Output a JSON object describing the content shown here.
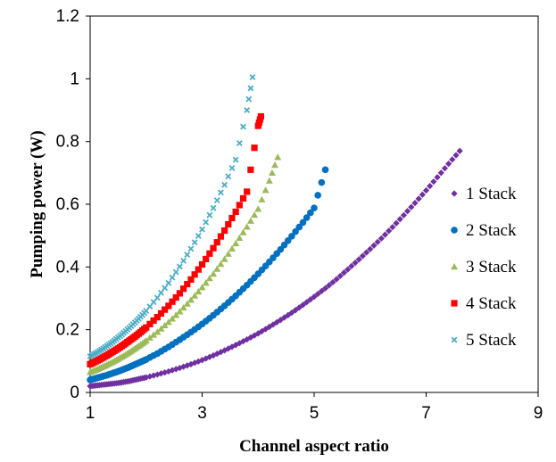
{
  "chart_data": {
    "type": "scatter",
    "title": "",
    "xlabel": "Channel aspect ratio",
    "ylabel": "Pumping power (W)",
    "xlim": [
      1,
      9
    ],
    "ylim": [
      0,
      1.2
    ],
    "x_ticks": [
      "1",
      "3",
      "5",
      "7",
      "9"
    ],
    "y_ticks": [
      "0",
      "0.2",
      "0.4",
      "0.6",
      "0.8",
      "1",
      "1.2"
    ],
    "grid": false,
    "legend_position": "right",
    "series": [
      {
        "name": "1 Stack",
        "color": "#7030A0",
        "marker": "diamond",
        "x": [
          1.0,
          1.1,
          1.2,
          1.3,
          1.4,
          1.5,
          1.6,
          1.7,
          1.8,
          1.9,
          2.0,
          2.2,
          2.4,
          2.6,
          2.8,
          3.0,
          3.2,
          3.4,
          3.6,
          3.8,
          4.0,
          4.2,
          4.4,
          4.6,
          4.8,
          5.0,
          5.2,
          5.4,
          5.6,
          5.8,
          6.0,
          6.2,
          6.4,
          6.6,
          6.8,
          7.0,
          7.2,
          7.4,
          7.6
        ],
        "y": [
          0.02,
          0.022,
          0.024,
          0.026,
          0.028,
          0.03,
          0.033,
          0.036,
          0.04,
          0.044,
          0.048,
          0.057,
          0.067,
          0.078,
          0.09,
          0.103,
          0.118,
          0.134,
          0.151,
          0.169,
          0.188,
          0.209,
          0.231,
          0.254,
          0.279,
          0.305,
          0.332,
          0.361,
          0.392,
          0.424,
          0.457,
          0.491,
          0.527,
          0.565,
          0.604,
          0.644,
          0.686,
          0.729,
          0.77
        ]
      },
      {
        "name": "2 Stack",
        "color": "#0070C0",
        "marker": "circle",
        "x": [
          1.0,
          1.1,
          1.2,
          1.3,
          1.4,
          1.5,
          1.6,
          1.7,
          1.8,
          1.9,
          2.0,
          2.2,
          2.4,
          2.6,
          2.8,
          3.0,
          3.2,
          3.4,
          3.6,
          3.8,
          4.0,
          4.2,
          4.4,
          4.6,
          4.8,
          5.0,
          5.2
        ],
        "y": [
          0.04,
          0.045,
          0.05,
          0.055,
          0.061,
          0.067,
          0.074,
          0.081,
          0.089,
          0.097,
          0.105,
          0.124,
          0.145,
          0.168,
          0.192,
          0.218,
          0.246,
          0.276,
          0.308,
          0.342,
          0.378,
          0.416,
          0.456,
          0.498,
          0.542,
          0.588,
          0.71
        ]
      },
      {
        "name": "3 Stack",
        "color": "#9BBB59",
        "marker": "triangle",
        "x": [
          1.0,
          1.1,
          1.2,
          1.3,
          1.4,
          1.5,
          1.6,
          1.7,
          1.8,
          1.9,
          2.0,
          2.2,
          2.4,
          2.6,
          2.8,
          3.0,
          3.2,
          3.4,
          3.6,
          3.8,
          4.0,
          4.2,
          4.35
        ],
        "y": [
          0.065,
          0.072,
          0.08,
          0.088,
          0.097,
          0.107,
          0.117,
          0.128,
          0.14,
          0.152,
          0.165,
          0.193,
          0.224,
          0.258,
          0.295,
          0.335,
          0.378,
          0.425,
          0.475,
          0.528,
          0.585,
          0.675,
          0.75
        ]
      },
      {
        "name": "4 Stack",
        "color": "#FF0000",
        "marker": "square",
        "x": [
          1.0,
          1.1,
          1.2,
          1.3,
          1.4,
          1.5,
          1.6,
          1.7,
          1.8,
          1.9,
          2.0,
          2.2,
          2.4,
          2.6,
          2.8,
          3.0,
          3.2,
          3.4,
          3.6,
          3.8,
          4.0,
          4.05
        ],
        "y": [
          0.09,
          0.099,
          0.108,
          0.118,
          0.129,
          0.14,
          0.152,
          0.165,
          0.178,
          0.192,
          0.207,
          0.24,
          0.276,
          0.316,
          0.36,
          0.408,
          0.46,
          0.516,
          0.576,
          0.64,
          0.85,
          0.88
        ]
      },
      {
        "name": "5 Stack",
        "color": "#4BACC6",
        "marker": "x",
        "x": [
          1.0,
          1.1,
          1.2,
          1.3,
          1.4,
          1.5,
          1.6,
          1.7,
          1.8,
          1.9,
          2.0,
          2.2,
          2.4,
          2.6,
          2.8,
          3.0,
          3.2,
          3.4,
          3.6,
          3.8,
          3.9
        ],
        "y": [
          0.115,
          0.125,
          0.136,
          0.148,
          0.161,
          0.175,
          0.19,
          0.206,
          0.223,
          0.241,
          0.26,
          0.302,
          0.349,
          0.401,
          0.458,
          0.52,
          0.588,
          0.662,
          0.742,
          0.9,
          1.005
        ]
      }
    ]
  }
}
